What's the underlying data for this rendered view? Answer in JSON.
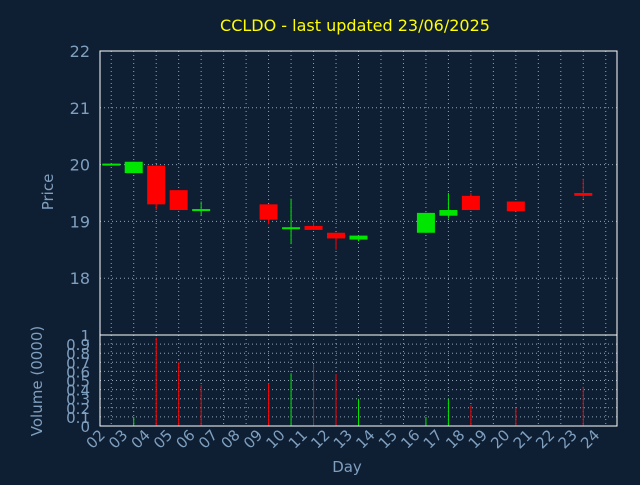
{
  "colors": {
    "background": "#0f1f33",
    "axis": "#ffffff",
    "grid": "#8fa3b8",
    "title": "#ffff00",
    "label": "#7f9fbf",
    "up": "#00e600",
    "down": "#ff0000"
  },
  "chart_data": [
    {
      "type": "candlestick",
      "title": "CCLDO - last updated 23/06/2025",
      "ylabel": "Price",
      "ylim": [
        17,
        22
      ],
      "yticks": [
        18,
        19,
        20,
        21,
        22
      ],
      "grid": true,
      "x_ticks": [
        "02",
        "03",
        "04",
        "05",
        "06",
        "07",
        "08",
        "09",
        "10",
        "11",
        "12",
        "13",
        "14",
        "15",
        "16",
        "17",
        "18",
        "19",
        "20",
        "21",
        "22",
        "23",
        "24"
      ],
      "candles": [
        {
          "day": "02",
          "open": 20.0,
          "high": 20.0,
          "low": 20.0,
          "close": 20.0
        },
        {
          "day": "03",
          "open": 19.85,
          "high": 20.05,
          "low": 19.85,
          "close": 20.05
        },
        {
          "day": "04",
          "open": 19.98,
          "high": 19.98,
          "low": 19.2,
          "close": 19.3
        },
        {
          "day": "05",
          "open": 19.55,
          "high": 19.55,
          "low": 19.2,
          "close": 19.2
        },
        {
          "day": "06",
          "open": 19.2,
          "high": 19.35,
          "low": 19.1,
          "close": 19.2
        },
        {
          "day": "09",
          "open": 19.3,
          "high": 19.3,
          "low": 18.95,
          "close": 19.03
        },
        {
          "day": "10",
          "open": 18.88,
          "high": 19.4,
          "low": 18.6,
          "close": 18.88
        },
        {
          "day": "11",
          "open": 18.92,
          "high": 19.0,
          "low": 18.85,
          "close": 18.85
        },
        {
          "day": "12",
          "open": 18.8,
          "high": 18.8,
          "low": 18.5,
          "close": 18.7
        },
        {
          "day": "13",
          "open": 18.68,
          "high": 18.75,
          "low": 18.65,
          "close": 18.75
        },
        {
          "day": "16",
          "open": 18.8,
          "high": 19.15,
          "low": 18.8,
          "close": 19.15
        },
        {
          "day": "17",
          "open": 19.1,
          "high": 19.5,
          "low": 19.05,
          "close": 19.2
        },
        {
          "day": "18",
          "open": 19.45,
          "high": 19.5,
          "low": 19.2,
          "close": 19.2
        },
        {
          "day": "20",
          "open": 19.35,
          "high": 19.35,
          "low": 19.18,
          "close": 19.18
        },
        {
          "day": "23",
          "open": 19.5,
          "high": 19.75,
          "low": 19.4,
          "close": 19.45
        }
      ]
    },
    {
      "type": "bar",
      "ylabel": "Volume (0000)",
      "xlabel": "Day",
      "ylim": [
        0,
        1
      ],
      "yticks": [
        0,
        0.1,
        0.2,
        0.3,
        0.4,
        0.5,
        0.6,
        0.7,
        0.8,
        0.9,
        1
      ],
      "ytick_labels": [
        "0",
        "0.1",
        "0.2",
        "0.3",
        "0.4",
        "0.5",
        "0.6",
        "0.7",
        "0.8",
        "0.9",
        "1"
      ],
      "grid": true,
      "x_ticks": [
        "02",
        "03",
        "04",
        "05",
        "06",
        "07",
        "08",
        "09",
        "10",
        "11",
        "12",
        "13",
        "14",
        "15",
        "16",
        "17",
        "18",
        "19",
        "20",
        "21",
        "22",
        "23",
        "24"
      ],
      "bars": [
        {
          "day": "03",
          "value": 0.1,
          "direction": "up"
        },
        {
          "day": "04",
          "value": 0.97,
          "direction": "down"
        },
        {
          "day": "05",
          "value": 0.7,
          "direction": "down"
        },
        {
          "day": "06",
          "value": 0.45,
          "direction": "down"
        },
        {
          "day": "09",
          "value": 0.47,
          "direction": "down"
        },
        {
          "day": "10",
          "value": 0.58,
          "direction": "up"
        },
        {
          "day": "11",
          "value": 0.68,
          "direction": "down"
        },
        {
          "day": "12",
          "value": 0.57,
          "direction": "down"
        },
        {
          "day": "13",
          "value": 0.3,
          "direction": "up"
        },
        {
          "day": "16",
          "value": 0.1,
          "direction": "up"
        },
        {
          "day": "17",
          "value": 0.3,
          "direction": "up"
        },
        {
          "day": "18",
          "value": 0.23,
          "direction": "down"
        },
        {
          "day": "20",
          "value": 0.2,
          "direction": "down"
        },
        {
          "day": "23",
          "value": 0.43,
          "direction": "down"
        }
      ]
    }
  ]
}
